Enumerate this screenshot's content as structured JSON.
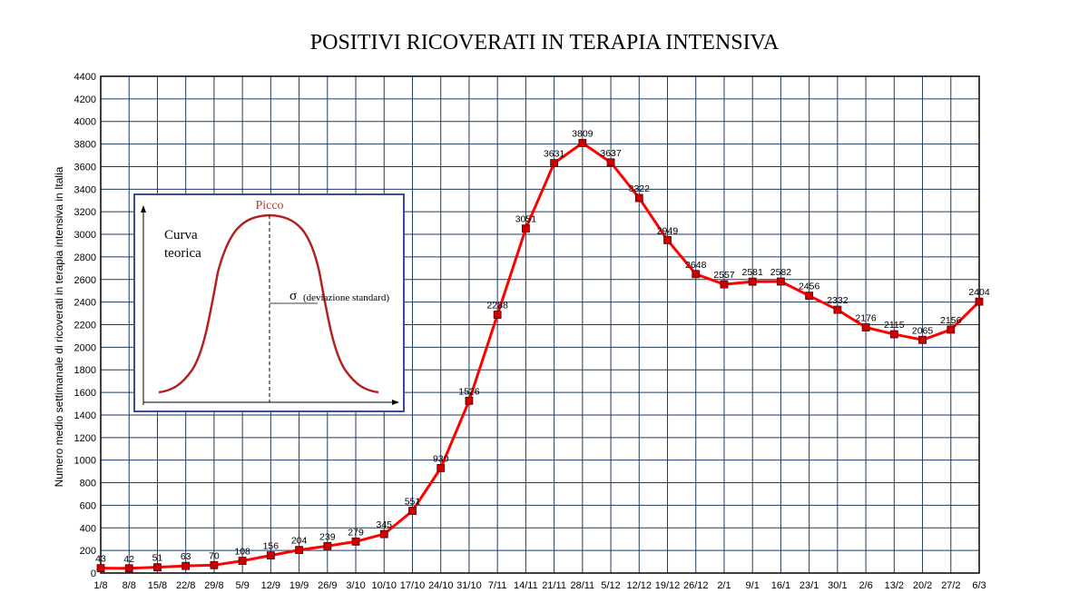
{
  "chart_data": {
    "type": "line",
    "title": "POSITIVI RICOVERATI IN TERAPIA INTENSIVA",
    "ylabel": "Numero medio settimanale di ricoverati in terapia intensiva in Italia",
    "xlabel": "",
    "ylim": [
      0,
      4400
    ],
    "ytick_step": 200,
    "grid": true,
    "x": [
      "1/8",
      "8/8",
      "15/8",
      "22/8",
      "29/8",
      "5/9",
      "12/9",
      "19/9",
      "26/9",
      "3/10",
      "10/10",
      "17/10",
      "24/10",
      "31/10",
      "7/11",
      "14/11",
      "21/11",
      "28/11",
      "5/12",
      "12/12",
      "19/12",
      "26/12",
      "2/1",
      "9/1",
      "16/1",
      "23/1",
      "30/1",
      "2/6",
      "13/2",
      "20/2",
      "27/2",
      "6/3"
    ],
    "series": [
      {
        "values": [
          43,
          42,
          51,
          63,
          70,
          108,
          156,
          204,
          239,
          279,
          345,
          551,
          930,
          1526,
          2288,
          3051,
          3631,
          3809,
          3637,
          3322,
          2949,
          2648,
          2557,
          2581,
          2582,
          2456,
          2332,
          2176,
          2115,
          2065,
          2156,
          2404
        ],
        "labels": [
          "43",
          "42",
          "51",
          "63",
          "70",
          "108",
          "156",
          "204",
          "239",
          "279",
          "345",
          "551",
          "930",
          "1526",
          "2288",
          "3051",
          "3631",
          "3809",
          "3637",
          "3322",
          "2949",
          "2648",
          "2557",
          "2581",
          "2582",
          "2456",
          "2332",
          "2176",
          "2115",
          "2065",
          "2156",
          "2404"
        ],
        "color": "#ff0000",
        "marker_color": "#cc0000"
      }
    ],
    "grid_color": "#1f3a5f",
    "inset": {
      "curve_label_line1": "Curva",
      "curve_label_line2": "teorica",
      "peak_label": "Picco",
      "sigma_symbol": "σ",
      "sigma_label": "(deviazione standard)",
      "border_color": "#3b4a9a",
      "curve_color": "#b22222"
    }
  }
}
